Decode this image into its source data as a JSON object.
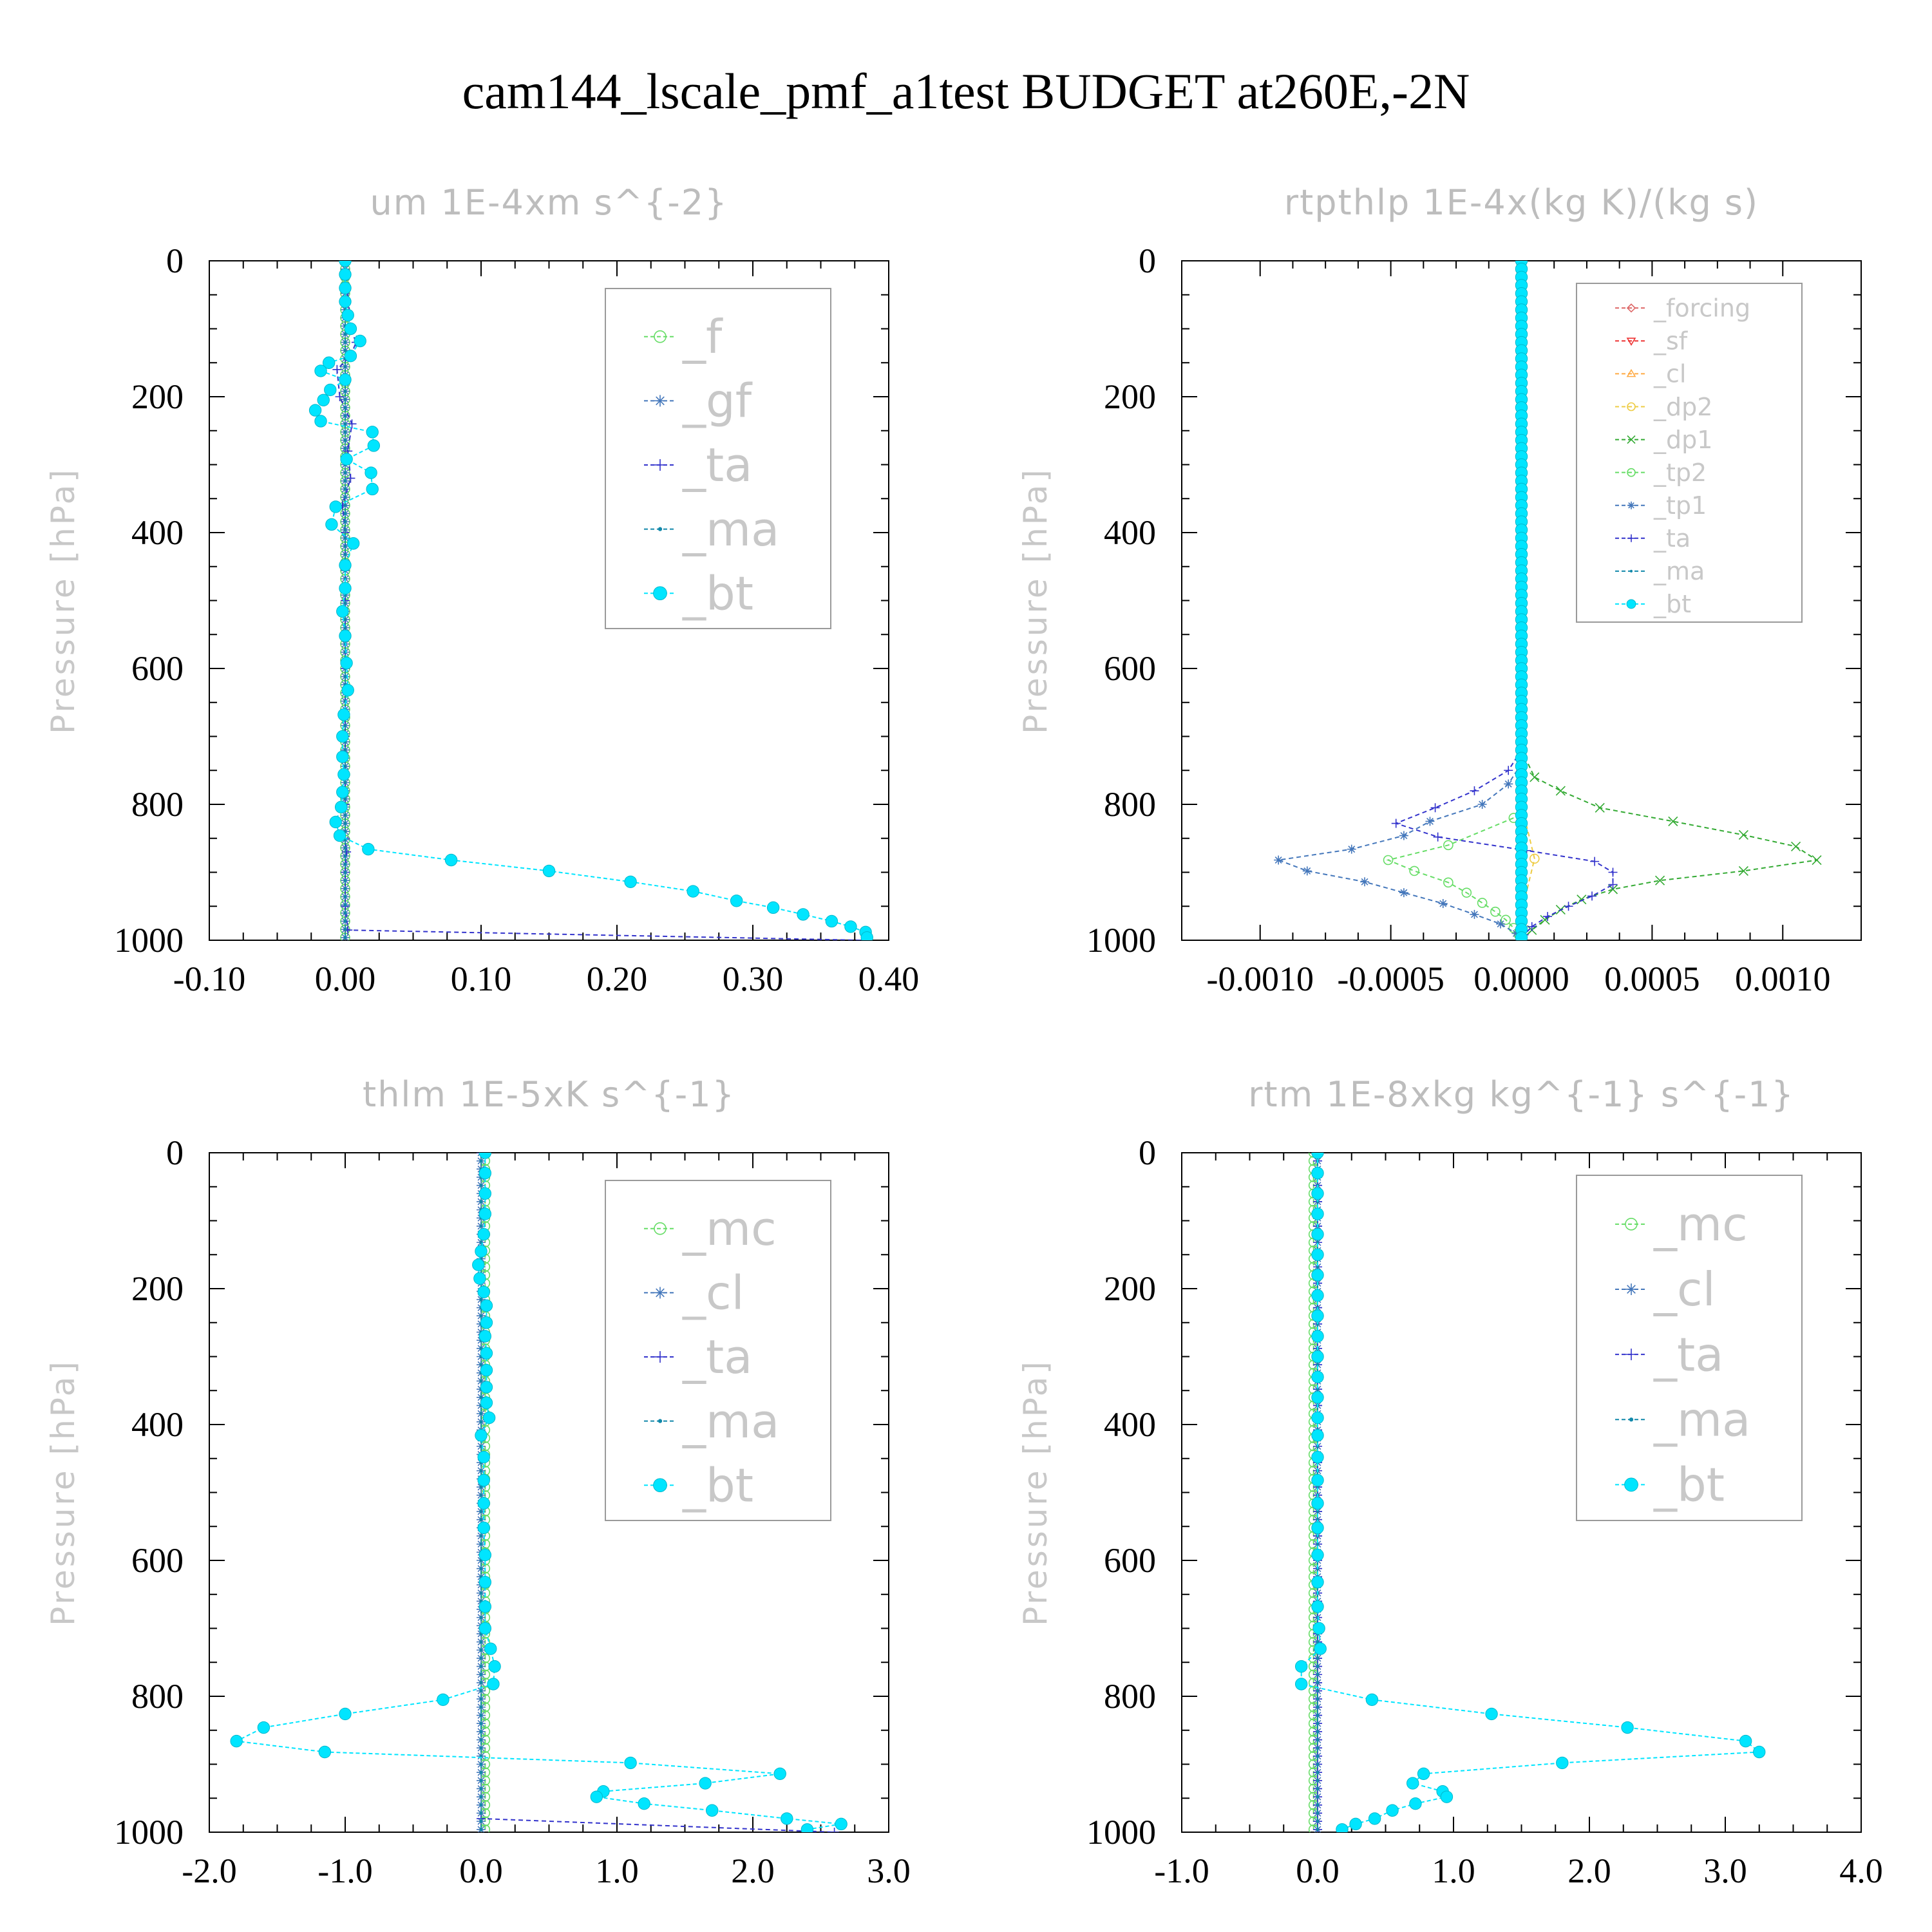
{
  "title": "cam144_lscale_pmf_a1test  BUDGET at260E,-2N",
  "chart_data": [
    {
      "type": "line",
      "title": "um   1E-4xm s^{-2}",
      "ylabel": "Pressure [hPa]",
      "ylim": [
        0,
        1000
      ],
      "y_inverted": true,
      "xlim": [
        -0.1,
        0.4
      ],
      "xticks": [
        "-0.10",
        "0.00",
        "0.10",
        "0.20",
        "0.30",
        "0.40"
      ],
      "yticks": [
        "0",
        "200",
        "400",
        "600",
        "800",
        "1000"
      ],
      "legend": [
        "_f",
        "_gf",
        "_ta",
        "_ma",
        "_bt"
      ],
      "legend_placement": "top-right",
      "series": [
        {
          "name": "_f",
          "color": "#66dd66",
          "marker": "circle",
          "y": [
            0,
            1000
          ],
          "x": [
            0.0,
            0.0
          ]
        },
        {
          "name": "_gf",
          "color": "#4477bb",
          "marker": "star",
          "y": [
            0,
            1000
          ],
          "x": [
            0.0,
            0.0
          ]
        },
        {
          "name": "_ta",
          "color": "#3333cc",
          "marker": "plus",
          "y": [
            0,
            100,
            120,
            140,
            160,
            200,
            240,
            280,
            320,
            360,
            400,
            500,
            600,
            700,
            800,
            850,
            870,
            900,
            950,
            985,
            1000
          ],
          "x": [
            0.0,
            0.004,
            0.008,
            0.004,
            -0.006,
            -0.004,
            0.005,
            0.002,
            0.004,
            -0.002,
            0.0,
            0.0,
            0.0,
            0.0,
            0.0,
            0.0,
            0.001,
            0.0,
            0.0,
            0.002,
            0.38
          ]
        },
        {
          "name": "_ma",
          "color": "#1188aa",
          "marker": "dot",
          "y": [
            0,
            1000
          ],
          "x": [
            0.0,
            0.0
          ]
        },
        {
          "name": "_bt",
          "color": "#00e5ff",
          "marker": "filled",
          "y": [
            0,
            20,
            40,
            60,
            80,
            100,
            118,
            140,
            150,
            162,
            175,
            190,
            205,
            220,
            236,
            252,
            272,
            292,
            312,
            336,
            362,
            388,
            416,
            448,
            482,
            516,
            552,
            592,
            632,
            668,
            700,
            730,
            756,
            782,
            804,
            826,
            846,
            866,
            882,
            898,
            914,
            928,
            942,
            952,
            962,
            972,
            980,
            988,
            996
          ],
          "x": [
            0.0,
            0.0,
            0.0,
            0.0,
            0.002,
            0.004,
            0.011,
            0.004,
            -0.012,
            -0.018,
            0.0,
            -0.011,
            -0.016,
            -0.022,
            -0.018,
            0.02,
            0.021,
            0.001,
            0.019,
            0.02,
            -0.007,
            -0.01,
            0.006,
            0.0,
            0.0,
            -0.002,
            0.0,
            0.001,
            0.002,
            -0.001,
            -0.002,
            -0.002,
            -0.001,
            -0.002,
            -0.003,
            -0.007,
            -0.004,
            0.017,
            0.078,
            0.15,
            0.21,
            0.256,
            0.288,
            0.315,
            0.337,
            0.358,
            0.372,
            0.383,
            0.384
          ]
        }
      ]
    },
    {
      "type": "line",
      "title": "rtpthlp   1E-4x(kg K)/(kg s)",
      "ylabel": "Pressure [hPa]",
      "ylim": [
        0,
        1000
      ],
      "y_inverted": true,
      "xlim": [
        -0.0013,
        0.0013
      ],
      "xticks": [
        "-0.0010",
        "-0.0005",
        "0.0000",
        "0.0005",
        "0.0010"
      ],
      "yticks": [
        "0",
        "200",
        "400",
        "600",
        "800",
        "1000"
      ],
      "legend": [
        "_forcing",
        "_sf",
        "_cl",
        "_dp2",
        "_dp1",
        "_tp2",
        "_tp1",
        "_ta",
        "_ma",
        "_bt"
      ],
      "legend_placement": "top-right",
      "series": [
        {
          "name": "_forcing",
          "color": "#dd6666",
          "marker": "diamond",
          "y": [
            0,
            1000
          ],
          "x": [
            0.0,
            0.0
          ]
        },
        {
          "name": "_sf",
          "color": "#ee3333",
          "marker": "tri-down",
          "y": [
            0,
            1000
          ],
          "x": [
            0.0,
            0.0
          ]
        },
        {
          "name": "_cl",
          "color": "#ffaa44",
          "marker": "tri-up",
          "y": [
            0,
            1000
          ],
          "x": [
            0.0,
            0.0
          ]
        },
        {
          "name": "_dp2",
          "color": "#eecc44",
          "marker": "circle",
          "y": [
            0,
            800,
            880,
            960,
            990,
            1000
          ],
          "x": [
            0.0,
            0.0,
            5e-05,
            0.0,
            -1e-05,
            0.0
          ]
        },
        {
          "name": "_dp1",
          "color": "#33aa33",
          "marker": "cross",
          "y": [
            720,
            760,
            780,
            805,
            825,
            845,
            862,
            882,
            898,
            912,
            925,
            940,
            955,
            970,
            985,
            1000
          ],
          "x": [
            0.0,
            5e-05,
            0.00015,
            0.0003,
            0.00058,
            0.00085,
            0.00105,
            0.00113,
            0.00085,
            0.00053,
            0.00035,
            0.00023,
            0.00015,
            9e-05,
            4e-05,
            0.0
          ]
        },
        {
          "name": "_tp2",
          "color": "#66dd66",
          "marker": "circle",
          "y": [
            820,
            860,
            882,
            898,
            915,
            930,
            945,
            958,
            970,
            982,
            992,
            1000
          ],
          "x": [
            -3e-05,
            -0.00028,
            -0.00051,
            -0.00041,
            -0.00028,
            -0.00021,
            -0.00015,
            -0.0001,
            -6e-05,
            -3e-05,
            -1e-05,
            0.0
          ]
        },
        {
          "name": "_tp1",
          "color": "#4477bb",
          "marker": "star",
          "y": [
            740,
            770,
            800,
            825,
            846,
            866,
            882,
            898,
            914,
            930,
            946,
            962,
            976,
            990,
            1000
          ],
          "x": [
            0.0,
            -5e-05,
            -0.00015,
            -0.00035,
            -0.00045,
            -0.00065,
            -0.00093,
            -0.00082,
            -0.0006,
            -0.00045,
            -0.0003,
            -0.00018,
            -8e-05,
            -2e-05,
            0.0
          ]
        },
        {
          "name": "_ta",
          "color": "#3333cc",
          "marker": "plus",
          "y": [
            720,
            750,
            780,
            805,
            828,
            848,
            868,
            884,
            900,
            918,
            935,
            950,
            965,
            980,
            992,
            1000
          ],
          "x": [
            0.0,
            -5e-05,
            -0.00018,
            -0.00033,
            -0.00048,
            -0.00032,
            2e-05,
            0.00028,
            0.00035,
            0.00035,
            0.00027,
            0.00018,
            0.0001,
            4e-05,
            1e-05,
            0.0
          ]
        },
        {
          "name": "_ma",
          "color": "#1188aa",
          "marker": "dot",
          "y": [
            0,
            1000
          ],
          "x": [
            0.0,
            0.0
          ]
        },
        {
          "name": "_bt",
          "color": "#00e5ff",
          "marker": "filled",
          "y": [
            0,
            1000
          ],
          "x": [
            0.0,
            0.0
          ]
        }
      ]
    },
    {
      "type": "line",
      "title": "thlm   1E-5xK s^{-1}",
      "ylabel": "Pressure [hPa]",
      "ylim": [
        0,
        1000
      ],
      "y_inverted": true,
      "xlim": [
        -2.0,
        3.0
      ],
      "xticks": [
        "-2.0",
        "-1.0",
        "0.0",
        "1.0",
        "2.0",
        "3.0"
      ],
      "yticks": [
        "0",
        "200",
        "400",
        "600",
        "800",
        "1000"
      ],
      "legend": [
        "_mc",
        "_cl",
        "_ta",
        "_ma",
        "_bt"
      ],
      "legend_placement": "top-right",
      "series": [
        {
          "name": "_mc",
          "color": "#66dd66",
          "marker": "circle",
          "y": [
            0,
            1000
          ],
          "x": [
            0.03,
            0.03
          ]
        },
        {
          "name": "_cl",
          "color": "#4477bb",
          "marker": "star",
          "y": [
            0,
            1000
          ],
          "x": [
            0.0,
            0.0
          ]
        },
        {
          "name": "_ta",
          "color": "#3333cc",
          "marker": "plus",
          "y": [
            0,
            980,
            1000
          ],
          "x": [
            0.0,
            0.0,
            2.6
          ]
        },
        {
          "name": "_ma",
          "color": "#1188aa",
          "marker": "dot",
          "y": [
            0,
            1000
          ],
          "x": [
            0.0,
            0.0
          ]
        },
        {
          "name": "_bt",
          "color": "#00e5ff",
          "marker": "filled",
          "y": [
            0,
            30,
            60,
            90,
            120,
            145,
            165,
            185,
            205,
            225,
            250,
            270,
            295,
            320,
            345,
            368,
            390,
            416,
            448,
            482,
            516,
            552,
            592,
            632,
            668,
            700,
            730,
            756,
            782,
            805,
            826,
            846,
            866,
            882,
            898,
            914,
            928,
            940,
            948,
            958,
            968,
            980,
            988,
            996
          ],
          "x": [
            0.03,
            0.03,
            0.03,
            0.03,
            0.02,
            0.0,
            -0.02,
            -0.01,
            0.02,
            0.04,
            0.04,
            0.03,
            0.04,
            0.04,
            0.04,
            0.04,
            0.06,
            0.0,
            0.02,
            0.02,
            0.02,
            0.02,
            0.03,
            0.03,
            0.03,
            0.03,
            0.07,
            0.1,
            0.09,
            -0.28,
            -1.0,
            -1.6,
            -1.8,
            -1.15,
            1.1,
            2.2,
            1.65,
            0.9,
            0.85,
            1.2,
            1.7,
            2.25,
            2.65,
            2.4
          ]
        }
      ]
    },
    {
      "type": "line",
      "title": "rtm   1E-8xkg kg^{-1} s^{-1}",
      "ylabel": "Pressure [hPa]",
      "ylim": [
        0,
        1000
      ],
      "y_inverted": true,
      "xlim": [
        -1.0,
        4.0
      ],
      "xticks": [
        "-1.0",
        "0.0",
        "1.0",
        "2.0",
        "3.0",
        "4.0"
      ],
      "yticks": [
        "0",
        "200",
        "400",
        "600",
        "800",
        "1000"
      ],
      "legend": [
        "_mc",
        "_cl",
        "_ta",
        "_ma",
        "_bt"
      ],
      "legend_placement": "top-right",
      "series": [
        {
          "name": "_mc",
          "color": "#66dd66",
          "marker": "circle",
          "y": [
            0,
            1000
          ],
          "x": [
            -0.03,
            -0.03
          ]
        },
        {
          "name": "_cl",
          "color": "#4477bb",
          "marker": "star",
          "y": [
            0,
            1000
          ],
          "x": [
            0.0,
            0.0
          ]
        },
        {
          "name": "_ta",
          "color": "#3333cc",
          "marker": "plus",
          "y": [
            0,
            1000
          ],
          "x": [
            0.0,
            0.0
          ]
        },
        {
          "name": "_ma",
          "color": "#1188aa",
          "marker": "dot",
          "y": [
            0,
            1000
          ],
          "x": [
            0.0,
            0.0
          ]
        },
        {
          "name": "_bt",
          "color": "#00e5ff",
          "marker": "filled",
          "y": [
            0,
            30,
            60,
            90,
            120,
            150,
            180,
            210,
            240,
            270,
            300,
            330,
            360,
            390,
            416,
            448,
            482,
            516,
            552,
            592,
            632,
            668,
            700,
            730,
            756,
            782,
            805,
            826,
            846,
            866,
            882,
            898,
            914,
            928,
            940,
            948,
            958,
            968,
            980,
            988,
            996
          ],
          "x": [
            0.0,
            0.0,
            0.0,
            0.0,
            0.0,
            0.0,
            0.0,
            0.0,
            0.0,
            0.0,
            0.0,
            0.0,
            0.0,
            0.0,
            0.0,
            0.0,
            0.0,
            0.0,
            0.0,
            0.0,
            0.0,
            0.0,
            0.01,
            0.02,
            -0.12,
            -0.12,
            0.4,
            1.28,
            2.28,
            3.15,
            3.25,
            1.8,
            0.78,
            0.7,
            0.92,
            0.95,
            0.72,
            0.55,
            0.42,
            0.28,
            0.18
          ]
        }
      ]
    }
  ]
}
